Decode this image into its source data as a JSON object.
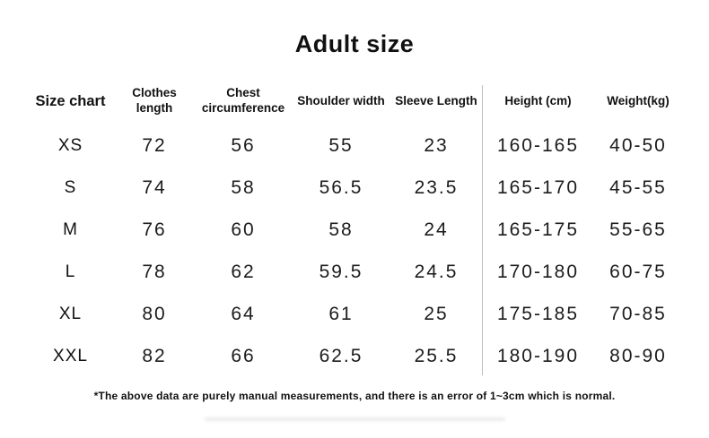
{
  "page": {
    "title": "Adult size",
    "footnote": "*The above data are purely manual measurements, and there is an error of 1~3cm which is normal."
  },
  "table": {
    "headers": {
      "size": "Size chart",
      "clothes_length": "Clothes length",
      "chest": "Chest circumference",
      "shoulder": "Shoulder width",
      "sleeve": "Sleeve Length",
      "height": "Height (cm)",
      "weight": "Weight(kg)"
    },
    "rows": [
      {
        "size": "XS",
        "clothes_length": "72",
        "chest": "56",
        "shoulder": "55",
        "sleeve": "23",
        "height": "160-165",
        "weight": "40-50"
      },
      {
        "size": "S",
        "clothes_length": "74",
        "chest": "58",
        "shoulder": "56.5",
        "sleeve": "23.5",
        "height": "165-170",
        "weight": "45-55"
      },
      {
        "size": "M",
        "clothes_length": "76",
        "chest": "60",
        "shoulder": "58",
        "sleeve": "24",
        "height": "165-175",
        "weight": "55-65"
      },
      {
        "size": "L",
        "clothes_length": "78",
        "chest": "62",
        "shoulder": "59.5",
        "sleeve": "24.5",
        "height": "170-180",
        "weight": "60-75"
      },
      {
        "size": "XL",
        "clothes_length": "80",
        "chest": "64",
        "shoulder": "61",
        "sleeve": "25",
        "height": "175-185",
        "weight": "70-85"
      },
      {
        "size": "XXL",
        "clothes_length": "82",
        "chest": "66",
        "shoulder": "62.5",
        "sleeve": "25.5",
        "height": "180-190",
        "weight": "80-90"
      }
    ]
  },
  "colors": {
    "background": "#ffffff",
    "text": "#151515",
    "divider": "#bdbdbd"
  }
}
